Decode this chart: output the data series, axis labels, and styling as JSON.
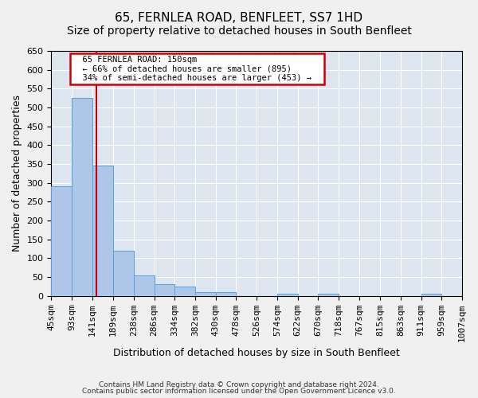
{
  "title1": "65, FERNLEA ROAD, BENFLEET, SS7 1HD",
  "title2": "Size of property relative to detached houses in South Benfleet",
  "xlabel": "Distribution of detached houses by size in South Benfleet",
  "ylabel": "Number of detached properties",
  "footer1": "Contains HM Land Registry data © Crown copyright and database right 2024.",
  "footer2": "Contains public sector information licensed under the Open Government Licence v3.0.",
  "annotation_line1": "65 FERNLEA ROAD: 150sqm",
  "annotation_line2": "← 66% of detached houses are smaller (895)",
  "annotation_line3": "34% of semi-detached houses are larger (453) →",
  "bar_edges": [
    45,
    93,
    141,
    189,
    238,
    286,
    334,
    382,
    430,
    478,
    526,
    574,
    622,
    670,
    718,
    767,
    815,
    863,
    911,
    959,
    1007
  ],
  "bar_heights": [
    290,
    525,
    345,
    120,
    55,
    30,
    25,
    10,
    10,
    0,
    0,
    5,
    0,
    5,
    0,
    0,
    0,
    0,
    5,
    0,
    5
  ],
  "bar_color": "#aec6e8",
  "bar_edgecolor": "#5a9fd4",
  "vline_x": 150,
  "vline_color": "#cc0000",
  "ylim": [
    0,
    650
  ],
  "yticks": [
    0,
    50,
    100,
    150,
    200,
    250,
    300,
    350,
    400,
    450,
    500,
    550,
    600,
    650
  ],
  "annotation_box_edgecolor": "#cc0000",
  "annotation_box_facecolor": "#ffffff",
  "plot_bg_color": "#dde6f0",
  "fig_bg_color": "#f0f0f0",
  "title1_fontsize": 11,
  "title2_fontsize": 10,
  "xlabel_fontsize": 9,
  "ylabel_fontsize": 9,
  "tick_fontsize": 8
}
